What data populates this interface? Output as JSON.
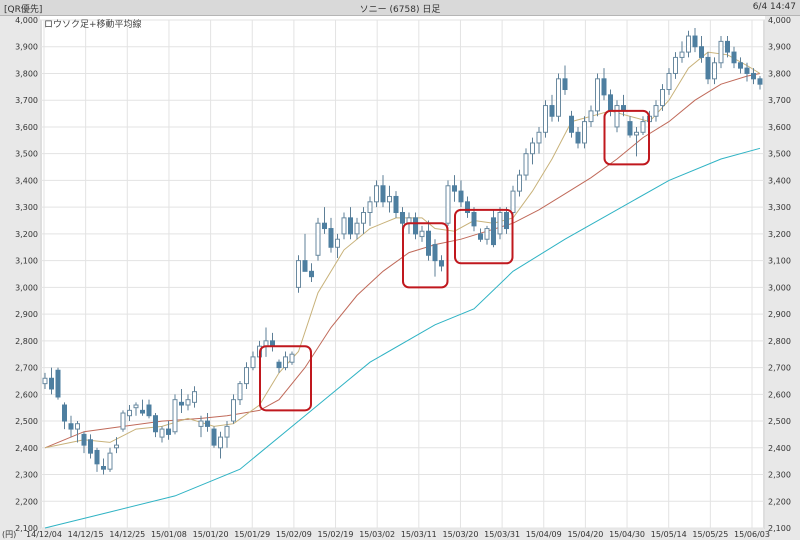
{
  "titlebar": {
    "left": "[QR優先]",
    "center": "ソニー (6758) 日足",
    "right": "6/4 14:47"
  },
  "chart_data": {
    "type": "candlestick",
    "legend_label": "ロウソク足+移動平均線",
    "yunit_label": "(円)",
    "ylim": [
      2100,
      4000
    ],
    "y_ticks": [
      2100,
      2200,
      2300,
      2400,
      2500,
      2600,
      2700,
      2800,
      2900,
      3000,
      3100,
      3200,
      3300,
      3400,
      3500,
      3600,
      3700,
      3800,
      3900,
      4000
    ],
    "x_tick_labels": [
      "14/12/04",
      "14/12/15",
      "14/12/25",
      "15/01/08",
      "15/01/20",
      "15/01/29",
      "15/02/09",
      "15/02/19",
      "15/03/02",
      "15/03/11",
      "15/03/20",
      "15/03/31",
      "15/04/09",
      "15/04/20",
      "15/04/30",
      "15/05/14",
      "15/05/25",
      "15/06/03"
    ],
    "candles": [
      [
        2640,
        2680,
        2620,
        2660
      ],
      [
        2660,
        2700,
        2600,
        2620
      ],
      [
        2690,
        2700,
        2580,
        2590
      ],
      [
        2560,
        2570,
        2470,
        2500
      ],
      [
        2490,
        2520,
        2440,
        2470
      ],
      [
        2470,
        2500,
        2420,
        2490
      ],
      [
        2450,
        2460,
        2380,
        2410
      ],
      [
        2430,
        2450,
        2360,
        2380
      ],
      [
        2390,
        2400,
        2310,
        2340
      ],
      [
        2330,
        2360,
        2300,
        2320
      ],
      [
        2320,
        2400,
        2310,
        2380
      ],
      [
        2400,
        2440,
        2380,
        2410
      ],
      [
        2470,
        2540,
        2460,
        2530
      ],
      [
        2520,
        2560,
        2500,
        2540
      ],
      [
        2550,
        2570,
        2520,
        2560
      ],
      [
        2540,
        2580,
        2520,
        2530
      ],
      [
        2560,
        2580,
        2510,
        2520
      ],
      [
        2520,
        2530,
        2440,
        2460
      ],
      [
        2440,
        2480,
        2420,
        2470
      ],
      [
        2470,
        2500,
        2430,
        2450
      ],
      [
        2460,
        2600,
        2450,
        2580
      ],
      [
        2570,
        2620,
        2530,
        2560
      ],
      [
        2560,
        2600,
        2540,
        2580
      ],
      [
        2570,
        2630,
        2550,
        2610
      ],
      [
        2480,
        2520,
        2440,
        2500
      ],
      [
        2500,
        2530,
        2460,
        2480
      ],
      [
        2470,
        2480,
        2400,
        2410
      ],
      [
        2400,
        2460,
        2360,
        2440
      ],
      [
        2440,
        2500,
        2400,
        2480
      ],
      [
        2500,
        2600,
        2490,
        2580
      ],
      [
        2580,
        2650,
        2560,
        2640
      ],
      [
        2640,
        2720,
        2620,
        2700
      ],
      [
        2700,
        2760,
        2690,
        2740
      ],
      [
        2740,
        2800,
        2700,
        2780
      ],
      [
        2780,
        2850,
        2740,
        2800
      ],
      [
        2800,
        2830,
        2760,
        2780
      ],
      [
        2720,
        2730,
        2680,
        2700
      ],
      [
        2700,
        2760,
        2690,
        2740
      ],
      [
        2720,
        2760,
        2710,
        2750
      ],
      [
        3000,
        3120,
        2980,
        3100
      ],
      [
        3100,
        3200,
        3060,
        3060
      ],
      [
        3060,
        3090,
        3020,
        3040
      ],
      [
        3120,
        3260,
        3100,
        3240
      ],
      [
        3240,
        3300,
        3200,
        3220
      ],
      [
        3220,
        3260,
        3130,
        3150
      ],
      [
        3150,
        3200,
        3110,
        3180
      ],
      [
        3200,
        3280,
        3180,
        3260
      ],
      [
        3260,
        3300,
        3180,
        3200
      ],
      [
        3200,
        3260,
        3180,
        3240
      ],
      [
        3240,
        3300,
        3200,
        3280
      ],
      [
        3280,
        3340,
        3230,
        3320
      ],
      [
        3320,
        3400,
        3300,
        3380
      ],
      [
        3380,
        3420,
        3300,
        3320
      ],
      [
        3320,
        3380,
        3280,
        3340
      ],
      [
        3340,
        3360,
        3260,
        3280
      ],
      [
        3280,
        3300,
        3220,
        3240
      ],
      [
        3240,
        3280,
        3200,
        3260
      ],
      [
        3260,
        3280,
        3180,
        3200
      ],
      [
        3190,
        3230,
        3170,
        3210
      ],
      [
        3210,
        3250,
        3100,
        3120
      ],
      [
        3160,
        3180,
        3040,
        3100
      ],
      [
        3100,
        3120,
        3060,
        3080
      ],
      [
        3240,
        3400,
        3230,
        3380
      ],
      [
        3380,
        3420,
        3320,
        3360
      ],
      [
        3360,
        3400,
        3300,
        3320
      ],
      [
        3320,
        3340,
        3260,
        3280
      ],
      [
        3280,
        3300,
        3210,
        3230
      ],
      [
        3200,
        3220,
        3170,
        3180
      ],
      [
        3180,
        3230,
        3160,
        3220
      ],
      [
        3260,
        3290,
        3150,
        3160
      ],
      [
        3200,
        3300,
        3180,
        3280
      ],
      [
        3280,
        3300,
        3200,
        3220
      ],
      [
        3280,
        3380,
        3270,
        3360
      ],
      [
        3360,
        3440,
        3340,
        3420
      ],
      [
        3420,
        3520,
        3400,
        3500
      ],
      [
        3500,
        3560,
        3460,
        3540
      ],
      [
        3540,
        3600,
        3500,
        3580
      ],
      [
        3580,
        3700,
        3560,
        3680
      ],
      [
        3680,
        3720,
        3620,
        3640
      ],
      [
        3640,
        3800,
        3620,
        3780
      ],
      [
        3780,
        3830,
        3720,
        3740
      ],
      [
        3640,
        3660,
        3560,
        3580
      ],
      [
        3580,
        3600,
        3520,
        3540
      ],
      [
        3540,
        3640,
        3520,
        3620
      ],
      [
        3620,
        3680,
        3600,
        3660
      ],
      [
        3660,
        3800,
        3640,
        3780
      ],
      [
        3780,
        3820,
        3700,
        3720
      ],
      [
        3720,
        3740,
        3640,
        3660
      ],
      [
        3600,
        3700,
        3580,
        3680
      ],
      [
        3680,
        3720,
        3640,
        3660
      ],
      [
        3620,
        3640,
        3560,
        3570
      ],
      [
        3570,
        3600,
        3490,
        3580
      ],
      [
        3580,
        3640,
        3570,
        3620
      ],
      [
        3620,
        3660,
        3580,
        3640
      ],
      [
        3640,
        3700,
        3620,
        3680
      ],
      [
        3680,
        3760,
        3660,
        3740
      ],
      [
        3740,
        3820,
        3720,
        3800
      ],
      [
        3800,
        3880,
        3780,
        3860
      ],
      [
        3860,
        3920,
        3840,
        3880
      ],
      [
        3880,
        3960,
        3860,
        3940
      ],
      [
        3940,
        3970,
        3880,
        3900
      ],
      [
        3900,
        3940,
        3840,
        3860
      ],
      [
        3860,
        3880,
        3760,
        3780
      ],
      [
        3780,
        3860,
        3760,
        3840
      ],
      [
        3840,
        3940,
        3820,
        3920
      ],
      [
        3920,
        3940,
        3860,
        3880
      ],
      [
        3880,
        3900,
        3820,
        3840
      ],
      [
        3840,
        3860,
        3800,
        3820
      ],
      [
        3820,
        3840,
        3770,
        3800
      ],
      [
        3800,
        3820,
        3760,
        3780
      ],
      [
        3780,
        3790,
        3740,
        3760
      ]
    ],
    "ma_short": [
      [
        0,
        2400
      ],
      [
        6,
        2430
      ],
      [
        10,
        2420
      ],
      [
        14,
        2470
      ],
      [
        18,
        2480
      ],
      [
        22,
        2510
      ],
      [
        26,
        2480
      ],
      [
        29,
        2490
      ],
      [
        33,
        2560
      ],
      [
        36,
        2680
      ],
      [
        39,
        2760
      ],
      [
        42,
        2980
      ],
      [
        46,
        3140
      ],
      [
        50,
        3220
      ],
      [
        54,
        3260
      ],
      [
        58,
        3260
      ],
      [
        60,
        3220
      ],
      [
        63,
        3210
      ],
      [
        66,
        3250
      ],
      [
        69,
        3240
      ],
      [
        72,
        3260
      ],
      [
        75,
        3360
      ],
      [
        78,
        3480
      ],
      [
        81,
        3620
      ],
      [
        84,
        3640
      ],
      [
        87,
        3660
      ],
      [
        90,
        3640
      ],
      [
        93,
        3620
      ],
      [
        96,
        3700
      ],
      [
        99,
        3820
      ],
      [
        102,
        3880
      ],
      [
        105,
        3870
      ],
      [
        108,
        3830
      ],
      [
        110,
        3800
      ]
    ],
    "ma_mid": [
      [
        0,
        2400
      ],
      [
        6,
        2460
      ],
      [
        12,
        2480
      ],
      [
        18,
        2500
      ],
      [
        24,
        2510
      ],
      [
        28,
        2520
      ],
      [
        33,
        2540
      ],
      [
        36,
        2580
      ],
      [
        40,
        2700
      ],
      [
        44,
        2850
      ],
      [
        48,
        2970
      ],
      [
        52,
        3060
      ],
      [
        56,
        3130
      ],
      [
        60,
        3160
      ],
      [
        64,
        3180
      ],
      [
        68,
        3210
      ],
      [
        72,
        3240
      ],
      [
        76,
        3290
      ],
      [
        80,
        3350
      ],
      [
        84,
        3410
      ],
      [
        88,
        3480
      ],
      [
        92,
        3560
      ],
      [
        96,
        3620
      ],
      [
        100,
        3700
      ],
      [
        104,
        3760
      ],
      [
        108,
        3790
      ],
      [
        110,
        3800
      ]
    ],
    "ma_long": [
      [
        0,
        2100
      ],
      [
        10,
        2160
      ],
      [
        20,
        2220
      ],
      [
        30,
        2320
      ],
      [
        40,
        2520
      ],
      [
        50,
        2720
      ],
      [
        60,
        2860
      ],
      [
        66,
        2920
      ],
      [
        72,
        3060
      ],
      [
        80,
        3180
      ],
      [
        88,
        3290
      ],
      [
        96,
        3400
      ],
      [
        104,
        3480
      ],
      [
        110,
        3520
      ]
    ],
    "highlight_boxes": [
      {
        "from_index": 34,
        "to_index": 40,
        "low": 2540,
        "high": 2780
      },
      {
        "from_index": 56,
        "to_index": 61,
        "low": 3000,
        "high": 3240
      },
      {
        "from_index": 64,
        "to_index": 71,
        "low": 3090,
        "high": 3290
      },
      {
        "from_index": 87,
        "to_index": 92,
        "low": 3460,
        "high": 3660
      }
    ],
    "colors": {
      "up_outline": "#6a8aa0",
      "down_fill": "#4e7fa0",
      "ma_short": "#c8b27a",
      "ma_mid": "#c06a5a",
      "ma_long": "#2fb3c4",
      "highlight": "#c0181e",
      "grid": "#e3e3e3"
    }
  }
}
